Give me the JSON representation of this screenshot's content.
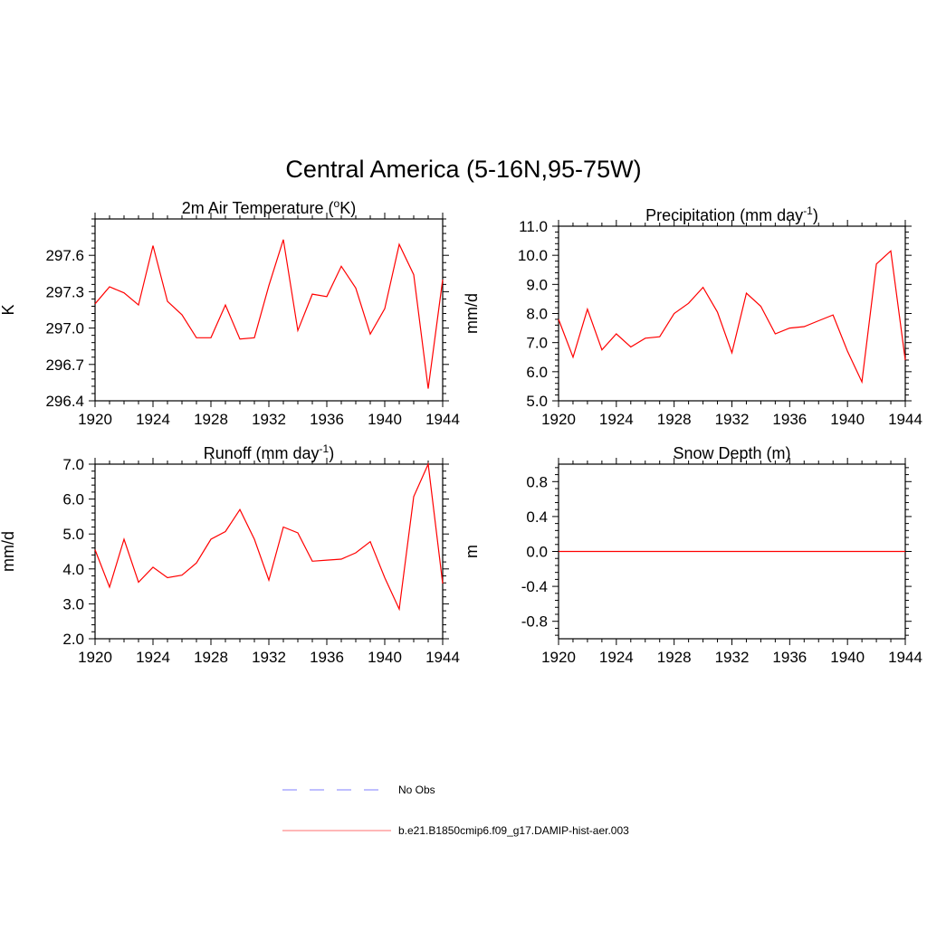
{
  "title": "Central America (5-16N,95-75W)",
  "legend": {
    "placement": "bottom-center",
    "entries": [
      {
        "label": "No Obs",
        "color": "#9999ff",
        "style": "dashed"
      },
      {
        "label": "b.e21.B1850cmip6.f09_g17.DAMIP-hist-aer.003",
        "color": "#ff0000",
        "style": "solid"
      }
    ]
  },
  "chart_data": [
    {
      "type": "line",
      "title_main": "2m Air Temperature (",
      "title_sup": "o",
      "title_tail": "K)",
      "ylabel": "K",
      "xlim": [
        1920,
        1944
      ],
      "ylim": [
        296.4,
        297.9
      ],
      "xticks": [
        "1920",
        "1924",
        "1928",
        "1932",
        "1936",
        "1940",
        "1944"
      ],
      "yticks": [
        "296.4",
        "296.7",
        "297.0",
        "297.3",
        "297.6"
      ],
      "grid": false,
      "series": [
        {
          "color": "#ff0000",
          "x": [
            1920,
            1921,
            1922,
            1923,
            1924,
            1925,
            1926,
            1927,
            1928,
            1929,
            1930,
            1931,
            1932,
            1933,
            1934,
            1935,
            1936,
            1937,
            1938,
            1939,
            1940,
            1941,
            1942,
            1943,
            1944
          ],
          "y": [
            297.2,
            297.34,
            297.29,
            297.19,
            297.68,
            297.22,
            297.11,
            296.92,
            296.92,
            297.19,
            296.91,
            296.92,
            297.35,
            297.73,
            296.98,
            297.28,
            297.26,
            297.51,
            297.33,
            296.95,
            297.16,
            297.69,
            297.44,
            296.5,
            297.4
          ]
        }
      ]
    },
    {
      "type": "line",
      "title_main": "Precipitation (mm day",
      "title_sup": "-1",
      "title_tail": ")",
      "ylabel": "mm/d",
      "xlim": [
        1920,
        1944
      ],
      "ylim": [
        5.0,
        11.0
      ],
      "xticks": [
        "1920",
        "1924",
        "1928",
        "1932",
        "1936",
        "1940",
        "1944"
      ],
      "yticks": [
        "5.0",
        "6.0",
        "7.0",
        "8.0",
        "9.0",
        "10.0",
        "11.0"
      ],
      "grid": false,
      "series": [
        {
          "color": "#ff0000",
          "x": [
            1920,
            1921,
            1922,
            1923,
            1924,
            1925,
            1926,
            1927,
            1928,
            1929,
            1930,
            1931,
            1932,
            1933,
            1934,
            1935,
            1936,
            1937,
            1938,
            1939,
            1940,
            1941,
            1942,
            1943,
            1944
          ],
          "y": [
            7.8,
            6.5,
            8.15,
            6.75,
            7.3,
            6.85,
            7.15,
            7.2,
            8.0,
            8.35,
            8.9,
            8.05,
            6.65,
            8.7,
            8.25,
            7.3,
            7.5,
            7.55,
            7.75,
            7.95,
            6.7,
            5.65,
            9.7,
            10.15,
            6.4
          ]
        }
      ]
    },
    {
      "type": "line",
      "title_main": "Runoff (mm day",
      "title_sup": "-1",
      "title_tail": ")",
      "ylabel": "mm/d",
      "xlim": [
        1920,
        1944
      ],
      "ylim": [
        2.0,
        7.0
      ],
      "xticks": [
        "1920",
        "1924",
        "1928",
        "1932",
        "1936",
        "1940",
        "1944"
      ],
      "yticks": [
        "2.0",
        "3.0",
        "4.0",
        "5.0",
        "6.0",
        "7.0"
      ],
      "grid": false,
      "series": [
        {
          "color": "#ff0000",
          "x": [
            1920,
            1921,
            1922,
            1923,
            1924,
            1925,
            1926,
            1927,
            1928,
            1929,
            1930,
            1931,
            1932,
            1933,
            1934,
            1935,
            1936,
            1937,
            1938,
            1939,
            1940,
            1941,
            1942,
            1943,
            1944
          ],
          "y": [
            4.55,
            3.48,
            4.85,
            3.62,
            4.05,
            3.75,
            3.82,
            4.17,
            4.85,
            5.07,
            5.7,
            4.85,
            3.68,
            5.2,
            5.03,
            4.22,
            4.25,
            4.28,
            4.46,
            4.78,
            3.75,
            2.85,
            6.07,
            7.0,
            3.58
          ]
        }
      ]
    },
    {
      "type": "line",
      "title_main": "Snow Depth (m)",
      "title_sup": "",
      "title_tail": "",
      "ylabel": "m",
      "xlim": [
        1920,
        1944
      ],
      "ylim": [
        -1.0,
        1.0
      ],
      "xticks": [
        "1920",
        "1924",
        "1928",
        "1932",
        "1936",
        "1940",
        "1944"
      ],
      "yticks": [
        "-0.8",
        "-0.4",
        "0.0",
        "0.4",
        "0.8"
      ],
      "grid": false,
      "series": [
        {
          "color": "#ff0000",
          "x": [
            1920,
            1944
          ],
          "y": [
            0.0,
            0.0
          ]
        }
      ]
    }
  ]
}
